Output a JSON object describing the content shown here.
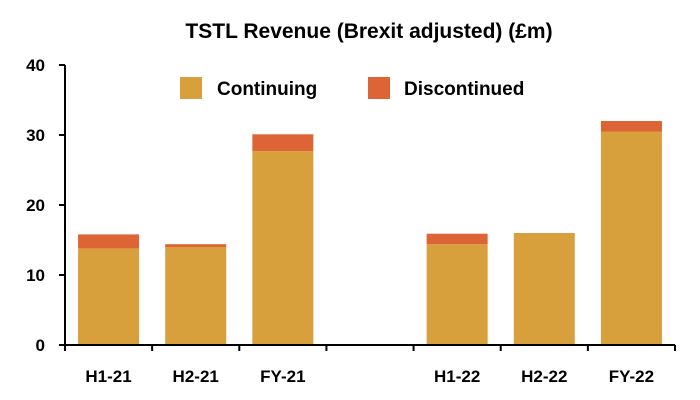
{
  "chart_data": {
    "type": "bar",
    "stacked": true,
    "title": "TSTL Revenue (Brexit adjusted) (£m)",
    "xlabel": "",
    "ylabel": "",
    "categories": [
      "H1-21",
      "H2-21",
      "FY-21",
      "",
      "H1-22",
      "H2-22",
      "FY-22"
    ],
    "series": [
      {
        "name": "Continuing",
        "color": "#D89F3D",
        "values": [
          13.8,
          14.0,
          27.7,
          null,
          14.4,
          16.0,
          30.5
        ]
      },
      {
        "name": "Discontinued",
        "color": "#DC6435",
        "values": [
          2.0,
          0.4,
          2.4,
          null,
          1.5,
          0.0,
          1.5
        ]
      }
    ],
    "ylim": [
      0,
      40
    ],
    "yticks": [
      0,
      10,
      20,
      30,
      40
    ],
    "grid": false,
    "legend_position": "top-center"
  }
}
